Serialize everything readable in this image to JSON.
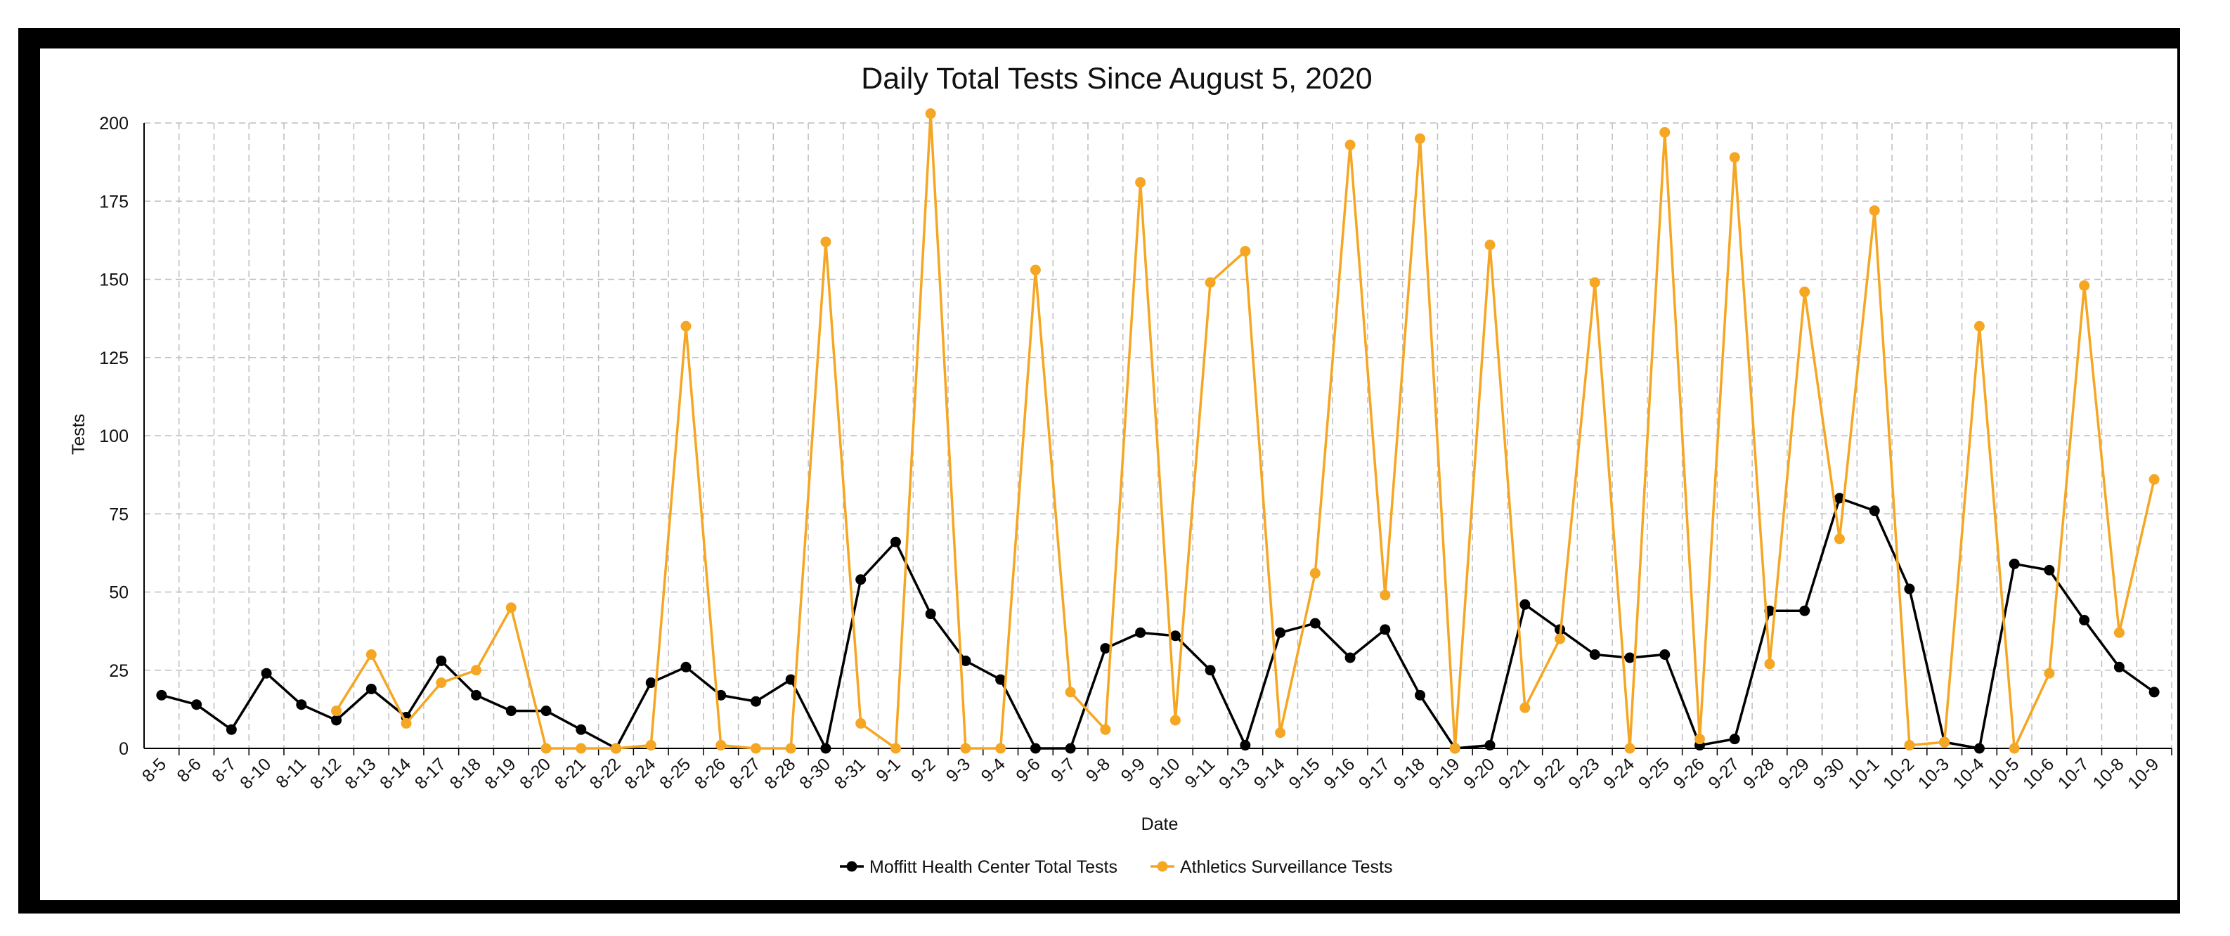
{
  "chart_data": {
    "type": "line",
    "title": "Daily Total Tests Since August 5, 2020",
    "xlabel": "Date",
    "ylabel": "Tests",
    "ylim": [
      0,
      200
    ],
    "yticks": [
      0,
      25,
      50,
      75,
      100,
      125,
      150,
      175,
      200
    ],
    "grid": true,
    "legend_position": "bottom",
    "categories": [
      "8-5",
      "8-6",
      "8-7",
      "8-10",
      "8-11",
      "8-12",
      "8-13",
      "8-14",
      "8-17",
      "8-18",
      "8-19",
      "8-20",
      "8-21",
      "8-22",
      "8-24",
      "8-25",
      "8-26",
      "8-27",
      "8-28",
      "8-30",
      "8-31",
      "9-1",
      "9-2",
      "9-3",
      "9-4",
      "9-6",
      "9-7",
      "9-8",
      "9-9",
      "9-10",
      "9-11",
      "9-13",
      "9-14",
      "9-15",
      "9-16",
      "9-17",
      "9-18",
      "9-19",
      "9-20",
      "9-21",
      "9-22",
      "9-23",
      "9-24",
      "9-25",
      "9-26",
      "9-27",
      "9-28",
      "9-29",
      "9-30",
      "10-1",
      "10-2",
      "10-3",
      "10-4",
      "10-5",
      "10-6",
      "10-7",
      "10-8",
      "10-9"
    ],
    "series": [
      {
        "name": "Moffitt Health Center Total Tests",
        "color": "#000000",
        "values": [
          17,
          14,
          6,
          24,
          14,
          9,
          19,
          10,
          28,
          17,
          12,
          12,
          6,
          0,
          21,
          26,
          17,
          15,
          22,
          0,
          54,
          66,
          43,
          28,
          22,
          0,
          0,
          32,
          37,
          36,
          25,
          1,
          37,
          40,
          29,
          38,
          17,
          0,
          1,
          46,
          38,
          30,
          29,
          30,
          1,
          3,
          44,
          44,
          80,
          76,
          51,
          2,
          0,
          59,
          57,
          41,
          26,
          18
        ]
      },
      {
        "name": "Athletics Surveillance Tests",
        "color": "#F5A623",
        "values": [
          null,
          null,
          null,
          null,
          null,
          12,
          30,
          8,
          21,
          25,
          45,
          0,
          0,
          0,
          1,
          135,
          1,
          0,
          0,
          162,
          8,
          0,
          203,
          0,
          0,
          153,
          18,
          6,
          181,
          9,
          149,
          159,
          5,
          56,
          193,
          49,
          195,
          0,
          161,
          13,
          35,
          149,
          0,
          197,
          3,
          189,
          27,
          146,
          67,
          172,
          1,
          2,
          135,
          0,
          24,
          148,
          37,
          86
        ]
      }
    ]
  }
}
